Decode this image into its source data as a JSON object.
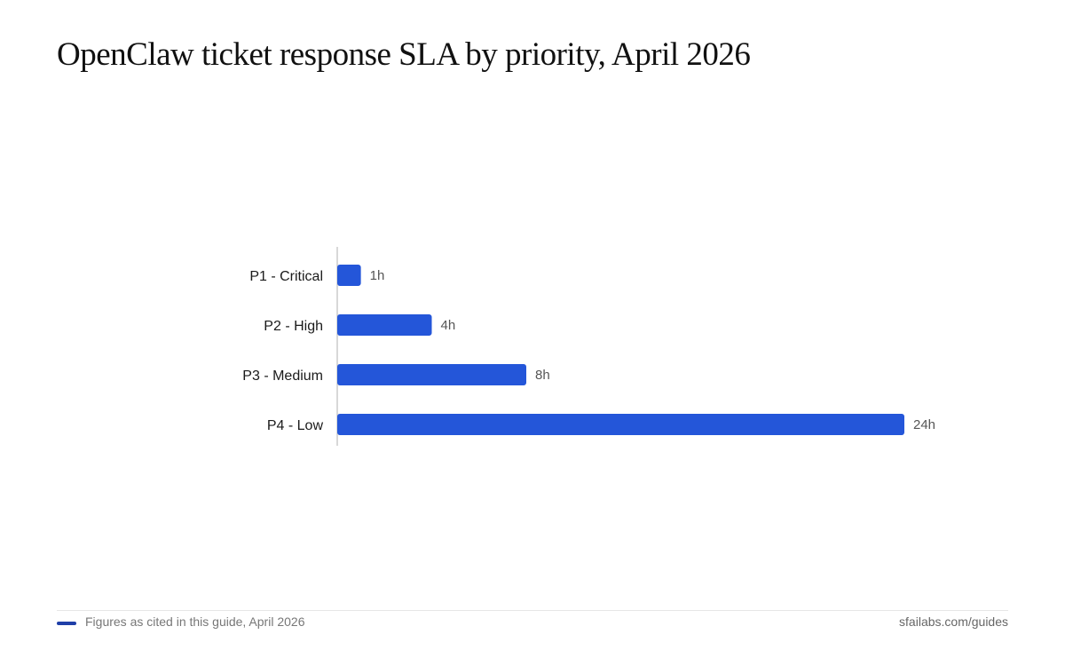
{
  "title": "OpenClaw ticket response SLA by priority, April 2026",
  "footer": {
    "note": "Figures as cited in this guide, April 2026",
    "source": "sfailabs.com/guides"
  },
  "colors": {
    "bar": "#2456d9",
    "axis": "#cccccc",
    "footer_swatch": "#1f3fa8"
  },
  "chart_data": {
    "type": "bar",
    "orientation": "horizontal",
    "categories": [
      "P1 - Critical",
      "P2 - High",
      "P3 - Medium",
      "P4 - Low"
    ],
    "values": [
      1,
      4,
      8,
      24
    ],
    "value_labels": [
      "1h",
      "4h",
      "8h",
      "24h"
    ],
    "xlim": [
      0,
      24
    ],
    "grid": false
  }
}
